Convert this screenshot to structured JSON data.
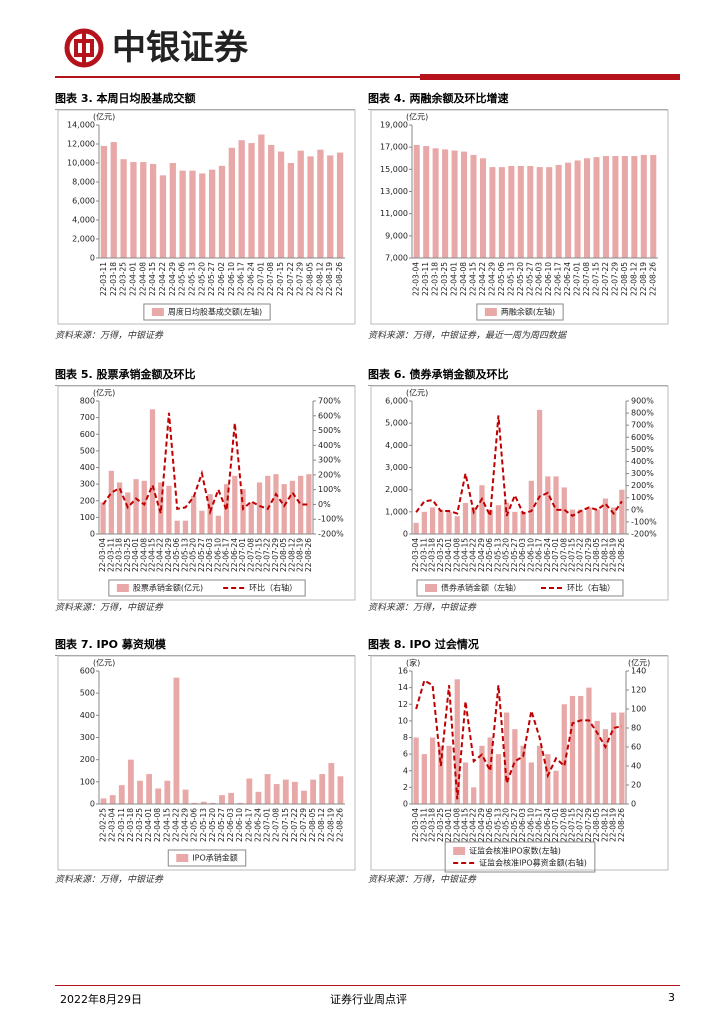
{
  "header": {
    "brand": "中银证券"
  },
  "chart_data": [
    {
      "type": "bar",
      "figure_title": "图表 3. 本周日均股基成交额",
      "unit": "(亿元)",
      "source": "资料来源：万得，中银证券",
      "categories": [
        "22-03-11",
        "22-03-18",
        "22-03-25",
        "22-04-01",
        "22-04-08",
        "22-04-15",
        "22-04-22",
        "22-04-29",
        "22-05-06",
        "22-05-13",
        "22-05-20",
        "22-05-27",
        "22-06-02",
        "22-06-10",
        "22-06-17",
        "22-06-24",
        "22-07-01",
        "22-07-08",
        "22-07-15",
        "22-07-22",
        "22-07-29",
        "22-08-05",
        "22-08-12",
        "22-08-19",
        "22-08-26"
      ],
      "series": [
        {
          "name": "周度日均股基成交额(左轴)",
          "type": "bar",
          "color": "#e9a8a8",
          "values": [
            11800,
            12200,
            10400,
            10100,
            10100,
            9900,
            8700,
            10000,
            9200,
            9200,
            8900,
            9300,
            9700,
            11600,
            12400,
            12100,
            13000,
            11900,
            11200,
            10000,
            11300,
            10700,
            11400,
            10800,
            11100
          ]
        }
      ],
      "ylim": [
        0,
        14000
      ],
      "yticks": [
        0,
        {
          "value": 2000,
          "label": "2,000"
        },
        {
          "value": 4000,
          "label": "4,000"
        },
        {
          "value": 6000,
          "label": "6,000"
        },
        {
          "value": 8000,
          "label": "8,000"
        },
        {
          "value": 10000,
          "label": "10,000"
        },
        {
          "value": 12000,
          "label": "12,000"
        },
        {
          "value": 14000,
          "label": "14,000"
        }
      ]
    },
    {
      "type": "bar",
      "figure_title": "图表 4. 两融余额及环比增速",
      "unit": "(亿元)",
      "source": "资料来源：万得，中银证券，最近一周为周四数据",
      "categories": [
        "22-03-04",
        "22-03-11",
        "22-03-18",
        "22-03-25",
        "22-04-01",
        "22-04-08",
        "22-04-15",
        "22-04-22",
        "22-04-29",
        "22-05-06",
        "22-05-13",
        "22-05-20",
        "22-05-27",
        "22-06-03",
        "22-06-10",
        "22-06-17",
        "22-06-24",
        "22-07-01",
        "22-07-08",
        "22-07-15",
        "22-07-22",
        "22-07-29",
        "22-08-05",
        "22-08-12",
        "22-08-19",
        "22-08-26"
      ],
      "series": [
        {
          "name": "两融余额(左轴)",
          "type": "bar",
          "color": "#e9a8a8",
          "values": [
            17200,
            17100,
            16900,
            16800,
            16700,
            16600,
            16300,
            16000,
            15200,
            15200,
            15300,
            15300,
            15300,
            15200,
            15200,
            15400,
            15600,
            15800,
            16000,
            16100,
            16200,
            16200,
            16200,
            16200,
            16300,
            16300
          ]
        }
      ],
      "ylim": [
        7000,
        19000
      ],
      "yticks": [
        {
          "value": 7000,
          "label": "7,000"
        },
        {
          "value": 9000,
          "label": "9,000"
        },
        {
          "value": 11000,
          "label": "11,000"
        },
        {
          "value": 13000,
          "label": "13,000"
        },
        {
          "value": 15000,
          "label": "15,000"
        },
        {
          "value": 17000,
          "label": "17,000"
        },
        {
          "value": 19000,
          "label": "19,000"
        }
      ]
    },
    {
      "type": "combo",
      "figure_title": "图表 5. 股票承销金额及环比",
      "unit": "(亿元)",
      "source": "资料来源：万得，中银证券",
      "categories": [
        "22-03-04",
        "22-03-11",
        "22-03-18",
        "22-03-25",
        "22-04-01",
        "22-04-08",
        "22-04-15",
        "22-04-22",
        "22-04-29",
        "22-05-06",
        "22-05-13",
        "22-05-20",
        "22-05-27",
        "22-06-03",
        "22-06-10",
        "22-06-17",
        "22-06-24",
        "22-07-01",
        "22-07-08",
        "22-07-15",
        "22-07-22",
        "22-07-29",
        "22-08-05",
        "22-08-12",
        "22-08-19",
        "22-08-26"
      ],
      "series": [
        {
          "name": "股票承销金额(亿元)",
          "type": "bar",
          "color": "#e9a8a8",
          "values": [
            190,
            380,
            310,
            250,
            330,
            320,
            750,
            310,
            290,
            80,
            80,
            230,
            140,
            240,
            110,
            300,
            350,
            270,
            190,
            310,
            350,
            360,
            300,
            320,
            350,
            360
          ]
        },
        {
          "name": "环比（右轴）",
          "type": "line",
          "axis": "y2",
          "color": "#c00000",
          "values": [
            0,
            80,
            110,
            -20,
            40,
            0,
            130,
            -60,
            620,
            -30,
            -20,
            50,
            210,
            -50,
            100,
            -40,
            550,
            -30,
            20,
            -10,
            -30,
            70,
            -10,
            80,
            0,
            0
          ]
        }
      ],
      "ylim": [
        0,
        800
      ],
      "yticks": [
        0,
        100,
        200,
        300,
        400,
        500,
        600,
        700,
        800
      ],
      "y2lim": [
        -200,
        700
      ],
      "y2ticks": [
        {
          "value": -200,
          "label": "-200%"
        },
        {
          "value": -100,
          "label": "-100%"
        },
        {
          "value": 0,
          "label": "0%"
        },
        {
          "value": 100,
          "label": "100%"
        },
        {
          "value": 200,
          "label": "200%"
        },
        {
          "value": 300,
          "label": "300%"
        },
        {
          "value": 400,
          "label": "400%"
        },
        {
          "value": 500,
          "label": "500%"
        },
        {
          "value": 600,
          "label": "600%"
        },
        {
          "value": 700,
          "label": "700%"
        }
      ]
    },
    {
      "type": "combo",
      "figure_title": "图表 6. 债券承销金额及环比",
      "unit": "(亿元)",
      "source": "资料来源：万得，中银证券",
      "categories": [
        "22-03-04",
        "22-03-11",
        "22-03-18",
        "22-03-25",
        "22-04-01",
        "22-04-08",
        "22-04-15",
        "22-04-22",
        "22-04-29",
        "22-05-06",
        "22-05-13",
        "22-05-20",
        "22-05-27",
        "22-06-03",
        "22-06-10",
        "22-06-17",
        "22-06-24",
        "22-07-01",
        "22-07-08",
        "22-07-15",
        "22-07-22",
        "22-07-29",
        "22-08-05",
        "22-08-12",
        "22-08-19",
        "22-08-26"
      ],
      "series": [
        {
          "name": "债券承销金额（左轴）",
          "type": "bar",
          "color": "#e9a8a8",
          "values": [
            500,
            1000,
            1200,
            1100,
            1000,
            800,
            1400,
            1200,
            2200,
            1100,
            1300,
            1400,
            1000,
            1000,
            2400,
            5600,
            2600,
            2600,
            2100,
            1100,
            1100,
            1200,
            1100,
            1600,
            1200,
            2000
          ]
        },
        {
          "name": "环比（右轴）",
          "type": "line",
          "axis": "y2",
          "color": "#c00000",
          "values": [
            -20,
            70,
            80,
            -10,
            -10,
            -30,
            300,
            -20,
            90,
            -50,
            780,
            -50,
            120,
            -30,
            -10,
            110,
            140,
            0,
            0,
            -50,
            -10,
            20,
            0,
            50,
            -30,
            70
          ]
        }
      ],
      "ylim": [
        0,
        6000
      ],
      "yticks": [
        0,
        {
          "value": 1000,
          "label": "1,000"
        },
        {
          "value": 2000,
          "label": "2,000"
        },
        {
          "value": 3000,
          "label": "3,000"
        },
        {
          "value": 4000,
          "label": "4,000"
        },
        {
          "value": 5000,
          "label": "5,000"
        },
        {
          "value": 6000,
          "label": "6,000"
        }
      ],
      "y2lim": [
        -200,
        900
      ],
      "y2ticks": [
        {
          "value": -200,
          "label": "-200%"
        },
        {
          "value": -100,
          "label": "-100%"
        },
        {
          "value": 0,
          "label": "0%"
        },
        {
          "value": 100,
          "label": "100%"
        },
        {
          "value": 200,
          "label": "200%"
        },
        {
          "value": 300,
          "label": "300%"
        },
        {
          "value": 400,
          "label": "400%"
        },
        {
          "value": 500,
          "label": "500%"
        },
        {
          "value": 600,
          "label": "600%"
        },
        {
          "value": 700,
          "label": "700%"
        },
        {
          "value": 800,
          "label": "800%"
        },
        {
          "value": 900,
          "label": "900%"
        }
      ]
    },
    {
      "type": "bar",
      "figure_title": "图表 7. IPO 募资规模",
      "unit": "(亿元)",
      "source": "资料来源：万得，中银证券",
      "categories": [
        "22-02-25",
        "22-03-04",
        "22-03-11",
        "22-03-18",
        "22-03-25",
        "22-04-01",
        "22-04-08",
        "22-04-15",
        "22-04-22",
        "22-04-29",
        "22-05-06",
        "22-05-13",
        "22-05-20",
        "22-05-27",
        "22-06-03",
        "22-06-10",
        "22-06-17",
        "22-06-24",
        "22-07-01",
        "22-07-08",
        "22-07-15",
        "22-07-22",
        "22-07-29",
        "22-08-05",
        "22-08-12",
        "22-08-19",
        "22-08-26"
      ],
      "series": [
        {
          "name": "IPO承销金额",
          "type": "bar",
          "color": "#e9a8a8",
          "values": [
            25,
            40,
            85,
            200,
            105,
            135,
            70,
            105,
            570,
            65,
            5,
            10,
            5,
            40,
            50,
            5,
            115,
            55,
            135,
            90,
            110,
            100,
            60,
            110,
            135,
            185,
            125
          ]
        }
      ],
      "ylim": [
        0,
        600
      ],
      "yticks": [
        0,
        100,
        200,
        300,
        400,
        500,
        600
      ]
    },
    {
      "type": "combo",
      "figure_title": "图表 8. IPO 过会情况",
      "unit": "(家)",
      "y2_unit": "(亿元)",
      "source": "资料来源：万得，中银证券",
      "categories": [
        "22-03-04",
        "22-03-11",
        "22-03-18",
        "22-03-25",
        "22-04-01",
        "22-04-08",
        "22-04-15",
        "22-04-22",
        "22-04-29",
        "22-05-06",
        "22-05-13",
        "22-05-20",
        "22-05-27",
        "22-06-03",
        "22-06-10",
        "22-06-17",
        "22-06-24",
        "22-07-01",
        "22-07-08",
        "22-07-15",
        "22-07-22",
        "22-07-29",
        "22-08-05",
        "22-08-12",
        "22-08-19",
        "22-08-26"
      ],
      "series": [
        {
          "name": "证监会核准IPO家数(左轴)",
          "type": "bar",
          "color": "#e9a8a8",
          "values": [
            8,
            6,
            8,
            7,
            7,
            15,
            5,
            2,
            7,
            8,
            6,
            11,
            9,
            7,
            5,
            7,
            6,
            4,
            12,
            13,
            13,
            14,
            10,
            9,
            11,
            11
          ]
        },
        {
          "name": "证监会核准IPO募资金额(右轴)",
          "type": "line",
          "axis": "y2",
          "color": "#c00000",
          "values": [
            100,
            130,
            125,
            40,
            125,
            5,
            108,
            45,
            52,
            35,
            125,
            22,
            45,
            50,
            98,
            70,
            30,
            48,
            40,
            85,
            88,
            88,
            75,
            60,
            80,
            82
          ]
        }
      ],
      "ylim": [
        0,
        16
      ],
      "yticks": [
        0,
        2,
        4,
        6,
        8,
        10,
        12,
        14,
        16
      ],
      "y2lim": [
        0,
        140
      ],
      "y2ticks": [
        0,
        20,
        40,
        60,
        80,
        100,
        120,
        140
      ]
    }
  ],
  "footer": {
    "date": "2022年8月29日",
    "report": "证券行业周点评",
    "page": "3"
  }
}
